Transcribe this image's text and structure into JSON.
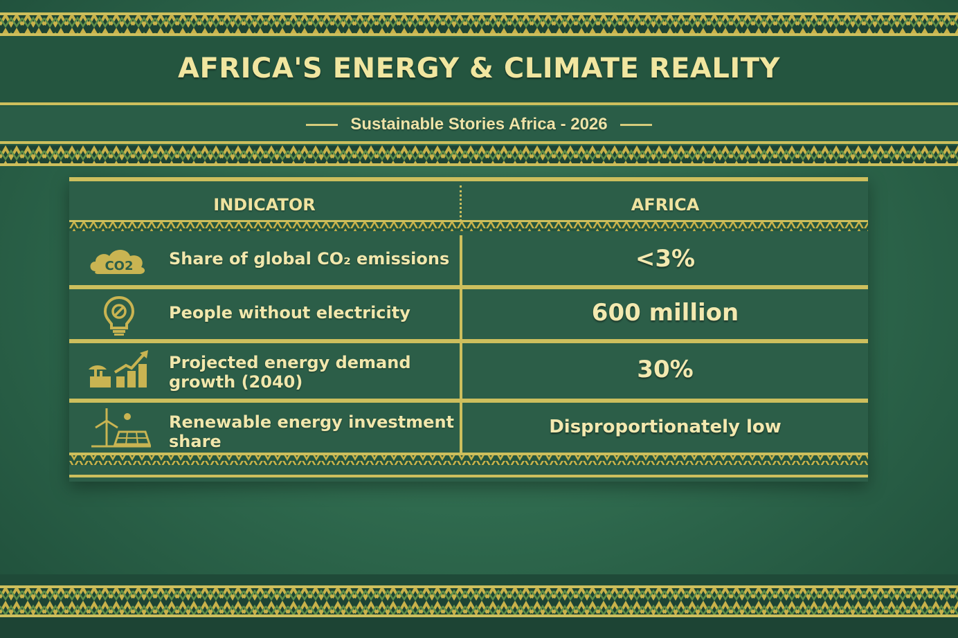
{
  "header": {
    "title": "AFRICA'S ENERGY & CLIMATE REALITY",
    "subtitle": "Sustainable Stories Africa - 2026"
  },
  "table": {
    "columns": [
      "INDICATOR",
      "AFRICA"
    ],
    "rows": [
      {
        "icon": "co2-cloud-icon",
        "indicator": "Share of global CO₂ emissions",
        "value": "<3%"
      },
      {
        "icon": "lightbulb-off-icon",
        "indicator": "People without electricity",
        "value": "600 million"
      },
      {
        "icon": "growth-chart-icon",
        "indicator": "Projected energy demand growth (2040)",
        "value": "30%"
      },
      {
        "icon": "renewables-icon",
        "indicator": "Renewable energy investment share",
        "value": "Disproportionately low"
      }
    ]
  },
  "colors": {
    "background": "#2f6a4e",
    "gold": "#cdbf5d",
    "text": "#f1e6a0"
  }
}
